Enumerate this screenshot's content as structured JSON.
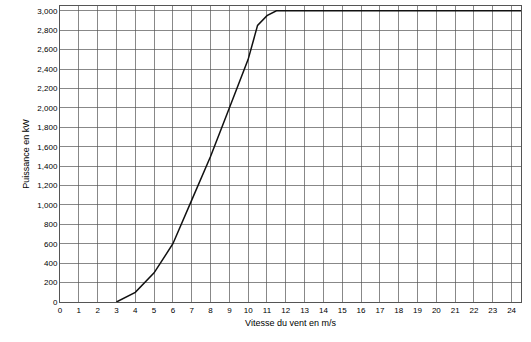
{
  "chart_data": {
    "type": "line",
    "xlabel": "Vitesse du vent en m/s",
    "ylabel": "Puissance en kW",
    "x": [
      3,
      4,
      5,
      6,
      7,
      8,
      9,
      10,
      10.5,
      11,
      11.5,
      24.5
    ],
    "series": [
      {
        "name": "Puissance",
        "color": "#111111",
        "line_style": "solid",
        "values": [
          0,
          100,
          300,
          600,
          1050,
          1500,
          2000,
          2500,
          2850,
          2950,
          3000,
          3000
        ]
      }
    ],
    "xlim": [
      0,
      24.5
    ],
    "xticks": [
      0,
      1,
      2,
      3,
      4,
      5,
      6,
      7,
      8,
      9,
      10,
      11,
      12,
      13,
      14,
      15,
      16,
      17,
      18,
      19,
      20,
      21,
      22,
      23,
      24
    ],
    "ylim": [
      0,
      3050
    ],
    "yticks": [
      0,
      200,
      400,
      600,
      800,
      {
        "value": 1000,
        "label": "1,000"
      },
      {
        "value": 1200,
        "label": "1,200"
      },
      {
        "value": 1400,
        "label": "1,400"
      },
      {
        "value": 1600,
        "label": "1,600"
      },
      {
        "value": 1800,
        "label": "1,800"
      },
      {
        "value": 2000,
        "label": "2,000"
      },
      {
        "value": 2200,
        "label": "2,200"
      },
      {
        "value": 2400,
        "label": "2,400"
      },
      {
        "value": 2600,
        "label": "2,600"
      },
      {
        "value": 2800,
        "label": "2,800"
      },
      {
        "value": 3000,
        "label": "3,000"
      }
    ],
    "grid": true
  }
}
